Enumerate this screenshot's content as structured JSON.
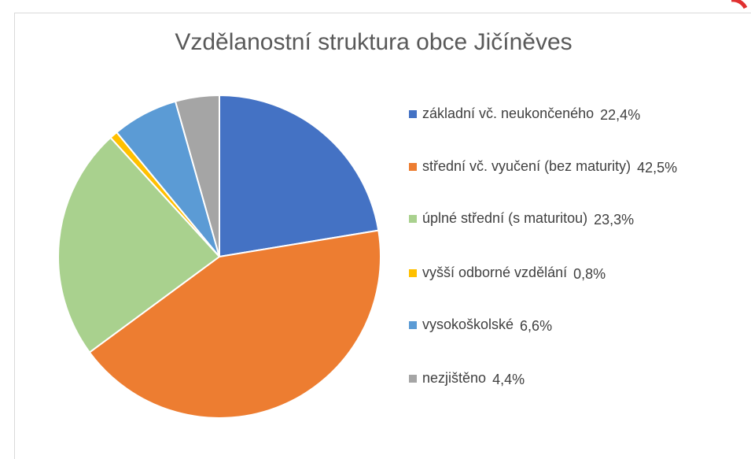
{
  "chart_data": {
    "type": "pie",
    "title": "Vzdělanostní struktura obce Jičíněves",
    "categories": [
      "základní vč. neukončeného",
      "střední vč. vyučení (bez maturity)",
      "úplné střední (s maturitou)",
      "vyšší odborné vzdělání",
      "vysokoškolské",
      "nezjištěno"
    ],
    "values": [
      22.4,
      42.5,
      23.3,
      0.8,
      6.6,
      4.4
    ],
    "value_labels": [
      "22,4%",
      "42,5%",
      "23,3%",
      "0,8%",
      "6,6%",
      "4,4%"
    ],
    "colors": [
      "#4472c4",
      "#ed7d31",
      "#a9d18e",
      "#ffc000",
      "#5b9bd5",
      "#a5a5a5"
    ],
    "legend": "right"
  }
}
